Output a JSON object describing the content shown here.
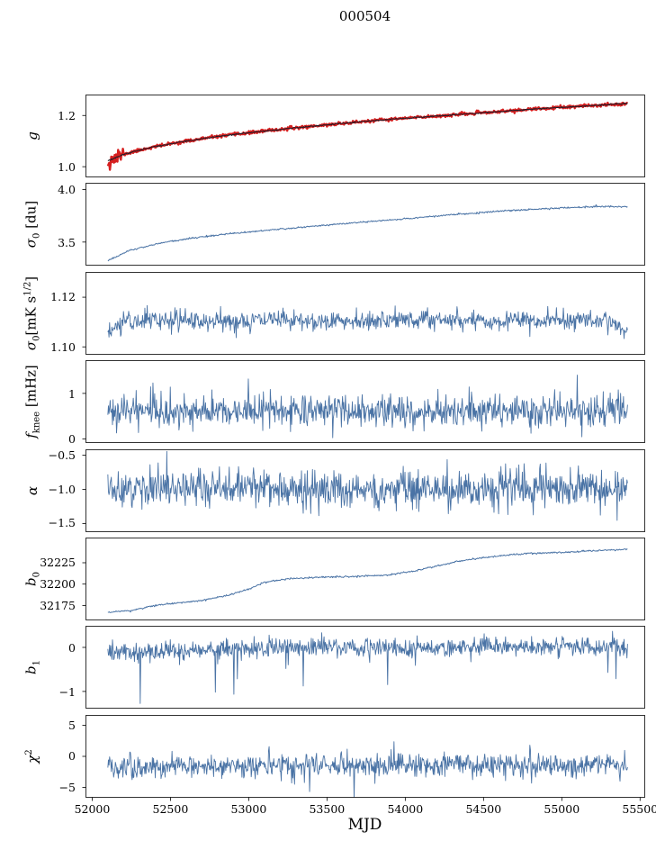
{
  "title": "000504",
  "xlabel": "MJD",
  "axis": {
    "xlim": [
      51960,
      55530
    ],
    "xticks": [
      52000,
      52500,
      53000,
      53500,
      54000,
      54500,
      55000,
      55500
    ],
    "xtick_labels": [
      "52000",
      "52500",
      "53000",
      "53500",
      "54000",
      "54500",
      "55000",
      "55500"
    ]
  },
  "colors": {
    "line_blue": "#4a73a5",
    "line_red": "#d62020",
    "line_dark": "#1c1c28",
    "axis": "#000000"
  },
  "chart_data": [
    {
      "name": "g",
      "type": "line",
      "ylabel": "g",
      "ylabel_html": "<i>g</i>",
      "ylim": [
        0.96,
        1.28
      ],
      "yticks": [
        1.0,
        1.2
      ],
      "ytick_labels": [
        "1.0",
        "1.2"
      ],
      "series": [
        {
          "name": "gain-measured",
          "color": "#d62020",
          "width": 2.4,
          "seed": 11,
          "n": 760,
          "noise": 0.003,
          "burst_until": 52200,
          "burst_noise": 0.017,
          "x": [
            52100,
            52200,
            52350,
            52550,
            52800,
            53050,
            53350,
            53650,
            53950,
            54250,
            54550,
            54850,
            55150,
            55420
          ],
          "y": [
            1.022,
            1.048,
            1.072,
            1.095,
            1.118,
            1.136,
            1.155,
            1.172,
            1.187,
            1.2,
            1.213,
            1.226,
            1.237,
            1.247
          ]
        },
        {
          "name": "gain-model",
          "color": "#1c1c28",
          "width": 1.0,
          "seed": 12,
          "n": 760,
          "noise": 0.0012,
          "x": [
            52100,
            52200,
            52350,
            52550,
            52800,
            53050,
            53350,
            53650,
            53950,
            54250,
            54550,
            54850,
            55150,
            55420
          ],
          "y": [
            1.022,
            1.048,
            1.072,
            1.095,
            1.118,
            1.136,
            1.155,
            1.172,
            1.187,
            1.2,
            1.213,
            1.226,
            1.237,
            1.247
          ]
        }
      ]
    },
    {
      "name": "sigma0_du",
      "type": "line",
      "ylabel": "σ0 [du]",
      "ylabel_html": "<i>σ</i><sub>0</sub> [du]",
      "ylim": [
        3.28,
        4.06
      ],
      "yticks": [
        3.5,
        4.0
      ],
      "ytick_labels": [
        "3.5",
        "4.0"
      ],
      "series": [
        {
          "name": "sigma0-du",
          "color": "#4a73a5",
          "width": 1.0,
          "seed": 21,
          "n": 760,
          "noise": 0.004,
          "x": [
            52100,
            52250,
            52450,
            52700,
            52950,
            53250,
            53600,
            53950,
            54300,
            54650,
            55000,
            55250,
            55420
          ],
          "y": [
            3.325,
            3.425,
            3.495,
            3.55,
            3.59,
            3.63,
            3.675,
            3.715,
            3.76,
            3.8,
            3.825,
            3.84,
            3.835
          ]
        }
      ]
    },
    {
      "name": "sigma0_mK",
      "type": "line",
      "ylabel": "σ0 [mK s1/2]",
      "ylabel_html": "<i>σ</i><sub>0</sub>[mK s<sup>1/2</sup>]",
      "ylim": [
        1.097,
        1.13
      ],
      "yticks": [
        1.1,
        1.12
      ],
      "ytick_labels": [
        "1.10",
        "1.12"
      ],
      "series": [
        {
          "name": "sigma0-mK",
          "color": "#4a73a5",
          "width": 0.9,
          "seed": 31,
          "n": 900,
          "noise": 0.002,
          "x": [
            52100,
            52200,
            52400,
            52800,
            53200,
            53600,
            54000,
            54400,
            54800,
            55100,
            55300,
            55420
          ],
          "y": [
            1.105,
            1.1105,
            1.111,
            1.11,
            1.111,
            1.1105,
            1.111,
            1.1108,
            1.1105,
            1.111,
            1.1108,
            1.1045
          ]
        }
      ]
    },
    {
      "name": "f_knee",
      "type": "line",
      "ylabel": "f_knee [mHz]",
      "ylabel_html": "<i>f</i><sub>knee</sub> [mHz]",
      "ylim": [
        -0.08,
        1.72
      ],
      "yticks": [
        0,
        1
      ],
      "ytick_labels": [
        "0",
        "1"
      ],
      "series": [
        {
          "name": "fknee",
          "color": "#4a73a5",
          "width": 0.9,
          "seed": 41,
          "n": 900,
          "noise": 0.16,
          "spike_prob": 0.04,
          "spike_scale": 2.6,
          "spike_sign": 0,
          "x": [
            52100,
            55420
          ],
          "y": [
            0.62,
            0.62
          ]
        }
      ]
    },
    {
      "name": "alpha",
      "type": "line",
      "ylabel": "α",
      "ylabel_html": "<i>α</i>",
      "ylim": [
        -1.62,
        -0.42
      ],
      "yticks": [
        -1.5,
        -1.0,
        -0.5
      ],
      "ytick_labels": [
        "−1.5",
        "−1.0",
        "−0.5"
      ],
      "series": [
        {
          "name": "alpha",
          "color": "#4a73a5",
          "width": 0.9,
          "seed": 51,
          "n": 900,
          "noise": 0.13,
          "spike_prob": 0.03,
          "spike_scale": 2.0,
          "spike_sign": 0,
          "x": [
            52100,
            55420
          ],
          "y": [
            -1.01,
            -0.99
          ]
        }
      ]
    },
    {
      "name": "b0",
      "type": "line",
      "ylabel": "b0",
      "ylabel_html": "<i>b</i><sub>0</sub>",
      "ylim": [
        32158,
        32254
      ],
      "yticks": [
        32175,
        32200,
        32225
      ],
      "ytick_labels": [
        "32175",
        "32200",
        "32225"
      ],
      "series": [
        {
          "name": "b0",
          "color": "#4a73a5",
          "width": 1.0,
          "seed": 61,
          "n": 760,
          "noise": 0.5,
          "x": [
            52100,
            52250,
            52400,
            52550,
            52700,
            52850,
            53000,
            53100,
            53250,
            53450,
            53700,
            53900,
            54050,
            54200,
            54350,
            54500,
            54650,
            54800,
            55000,
            55200,
            55420
          ],
          "y": [
            32167,
            32169,
            32175,
            32178,
            32181,
            32186,
            32194,
            32202,
            32206,
            32208,
            32209,
            32211,
            32215,
            32221,
            32227,
            32231,
            32234,
            32236,
            32237,
            32239,
            32241
          ]
        }
      ]
    },
    {
      "name": "b1",
      "type": "line",
      "ylabel": "b1",
      "ylabel_html": "<i>b</i><sub>1</sub>",
      "ylim": [
        -1.38,
        0.48
      ],
      "yticks": [
        -1,
        0
      ],
      "ytick_labels": [
        "−1",
        "0"
      ],
      "series": [
        {
          "name": "b1",
          "color": "#4a73a5",
          "width": 0.9,
          "seed": 71,
          "n": 900,
          "noise": 0.11,
          "spike_prob": 0.012,
          "spike_scale": 6.5,
          "spike_sign": -1,
          "x": [
            52100,
            52500,
            53000,
            53500,
            54000,
            54500,
            55000,
            55420
          ],
          "y": [
            -0.08,
            -0.1,
            -0.02,
            0.0,
            -0.02,
            0.02,
            0.0,
            0.05
          ]
        }
      ]
    },
    {
      "name": "chi2",
      "type": "line",
      "ylabel": "χ2",
      "ylabel_html": "<i>χ</i><sup>2</sup>",
      "ylim": [
        -6.6,
        6.6
      ],
      "yticks": [
        -5,
        0,
        5
      ],
      "ytick_labels": [
        "−5",
        "0",
        "5"
      ],
      "series": [
        {
          "name": "chi2",
          "color": "#4a73a5",
          "width": 0.9,
          "seed": 81,
          "n": 900,
          "noise": 0.95,
          "spike_prob": 0.02,
          "spike_scale": 2.4,
          "spike_sign": 0,
          "x": [
            52100,
            55420
          ],
          "y": [
            -1.6,
            -1.25
          ]
        }
      ]
    }
  ]
}
